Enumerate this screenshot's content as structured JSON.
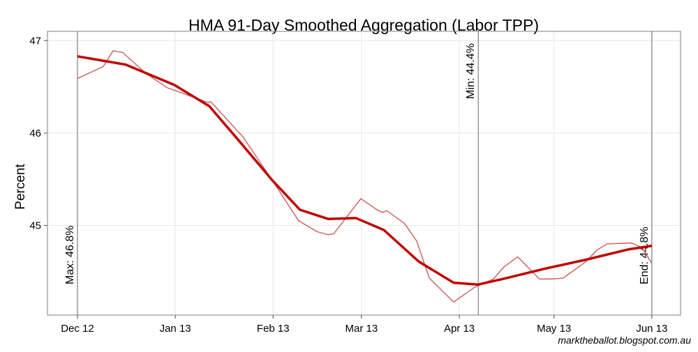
{
  "chart_data": {
    "type": "line",
    "title": "HMA 91-Day Smoothed Aggregation (Labor TPP)",
    "ylabel": "Percent",
    "footer": "marktheballot.blogspot.com.au",
    "xlim": [
      -9.5,
      191.1
    ],
    "xticks": [
      {
        "value": 0,
        "label": "Dec 12"
      },
      {
        "value": 31,
        "label": "Jan 13"
      },
      {
        "value": 62,
        "label": "Feb 13"
      },
      {
        "value": 90,
        "label": "Mar 13"
      },
      {
        "value": 121,
        "label": "Apr 13"
      },
      {
        "value": 151,
        "label": "May 13"
      },
      {
        "value": 182,
        "label": "Jun 13"
      }
    ],
    "ylim": [
      44.03,
      47.1
    ],
    "yticks": [
      45,
      46,
      47
    ],
    "grid": true,
    "series": [
      {
        "color": "#cc6666",
        "width": 1.5,
        "x": [
          0,
          8.2,
          11.3,
          14.4,
          21.5,
          28.5,
          41.4,
          42.2,
          52.4,
          61.7,
          70.1,
          76.1,
          79.4,
          81.2,
          89.8,
          94.9,
          96.7,
          98.0,
          103.7,
          107.5,
          111.5,
          119.2,
          125.8,
          131.8,
          135.1,
          139.5,
          146.4,
          150.2,
          153.9,
          161.2,
          164.5,
          167.8,
          175.6,
          178.9,
          182
        ],
        "values": [
          46.59,
          46.72,
          46.89,
          46.87,
          46.65,
          46.49,
          46.33,
          46.34,
          45.96,
          45.49,
          45.05,
          44.93,
          44.9,
          44.91,
          45.29,
          45.17,
          45.14,
          45.16,
          45.02,
          44.83,
          44.43,
          44.17,
          44.33,
          44.42,
          44.55,
          44.66,
          44.42,
          44.42,
          44.43,
          44.61,
          44.73,
          44.8,
          44.81,
          44.76,
          44.59
        ]
      },
      {
        "color": "#c00000",
        "width": 3.5,
        "x": [
          0,
          15.3,
          30.7,
          41.8,
          50.6,
          61.7,
          70.5,
          79.4,
          88.2,
          97.1,
          108.1,
          119.2,
          126.9,
          134.7,
          147.9,
          161.2,
          174.5,
          182
        ],
        "values": [
          46.83,
          46.74,
          46.52,
          46.29,
          45.94,
          45.49,
          45.17,
          45.07,
          45.08,
          44.95,
          44.61,
          44.38,
          44.36,
          44.42,
          44.53,
          44.63,
          44.74,
          44.78
        ]
      }
    ],
    "annotations": [
      {
        "x": 0,
        "text": "Max: 46.8%",
        "position": "bottom"
      },
      {
        "x": 127,
        "text": "Min: 44.4%",
        "position": "top"
      },
      {
        "x": 182,
        "text": "End: 44.8%",
        "position": "bottom"
      }
    ]
  }
}
